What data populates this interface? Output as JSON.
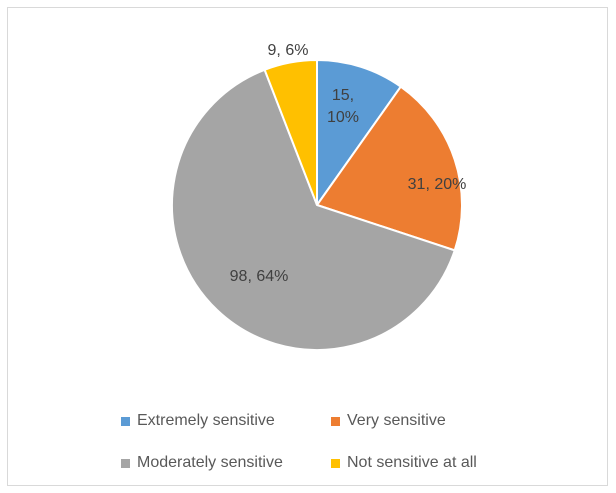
{
  "chart_data": {
    "type": "pie",
    "title": "",
    "categories": [
      "Extremely sensitive",
      "Very sensitive",
      "Moderately sensitive",
      "Not sensitive at all"
    ],
    "values": [
      15,
      31,
      98,
      9
    ],
    "percents": [
      10,
      20,
      64,
      6
    ],
    "labels": [
      "15, 10%",
      "31, 20%",
      "98, 64%",
      "9, 6%"
    ],
    "colors": [
      "#5b9bd5",
      "#ed7d31",
      "#a5a5a5",
      "#ffc000"
    ],
    "legend": "bottom"
  }
}
